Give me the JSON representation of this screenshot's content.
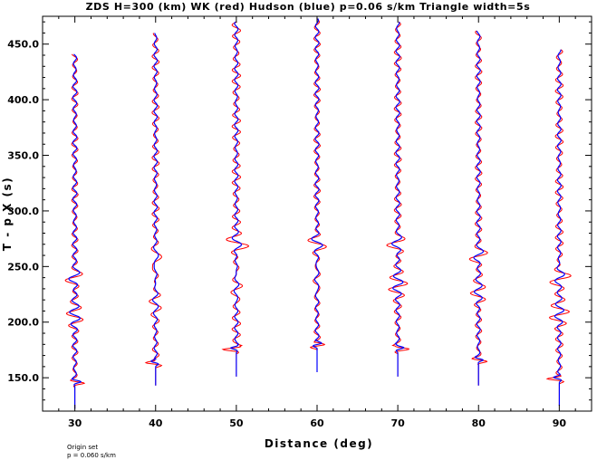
{
  "chart_data": {
    "type": "line",
    "title": "ZDS H=300 (km) WK (red) Hudson (blue) p=0.06 s/km Triangle width=5s",
    "xlabel": "Distance (deg)",
    "ylabel": "T - p X (s)",
    "xlim": [
      26,
      94
    ],
    "ylim": [
      120,
      475
    ],
    "xticks": [
      30,
      40,
      50,
      60,
      70,
      80,
      90
    ],
    "xtick_labels": [
      "30",
      "40",
      "50",
      "60",
      "70",
      "80",
      "90"
    ],
    "yticks": [
      150,
      200,
      250,
      300,
      350,
      400,
      450
    ],
    "ytick_labels": [
      "150.0",
      "200.0",
      "250.0",
      "300.0",
      "350.0",
      "400.0",
      "450.0"
    ],
    "grid": false,
    "legend": "none",
    "series": [
      {
        "name": "WK",
        "color": "#ff0000"
      },
      {
        "name": "Hudson",
        "color": "#0000ff"
      }
    ],
    "traces": [
      {
        "distance": 30,
        "t_start": 122,
        "t_end": 441,
        "onset": 145,
        "red_scale": 0.9,
        "blue_scale": 0.8
      },
      {
        "distance": 40,
        "t_start": 143,
        "t_end": 460,
        "onset": 162,
        "red_scale": 1.0,
        "blue_scale": 0.65
      },
      {
        "distance": 50,
        "t_start": 151,
        "t_end": 470,
        "onset": 175,
        "red_scale": 1.2,
        "blue_scale": 0.7
      },
      {
        "distance": 60,
        "t_start": 155,
        "t_end": 473,
        "onset": 178,
        "red_scale": 0.9,
        "blue_scale": 0.75
      },
      {
        "distance": 70,
        "t_start": 151,
        "t_end": 470,
        "onset": 175,
        "red_scale": 1.0,
        "blue_scale": 0.75
      },
      {
        "distance": 80,
        "t_start": 143,
        "t_end": 462,
        "onset": 165,
        "red_scale": 0.95,
        "blue_scale": 0.7
      },
      {
        "distance": 90,
        "t_start": 125,
        "t_end": 445,
        "onset": 148,
        "red_scale": 1.1,
        "blue_scale": 0.7
      }
    ]
  },
  "footnote": {
    "line1": "Origin set",
    "line2": "p = 0.060 s/km"
  }
}
